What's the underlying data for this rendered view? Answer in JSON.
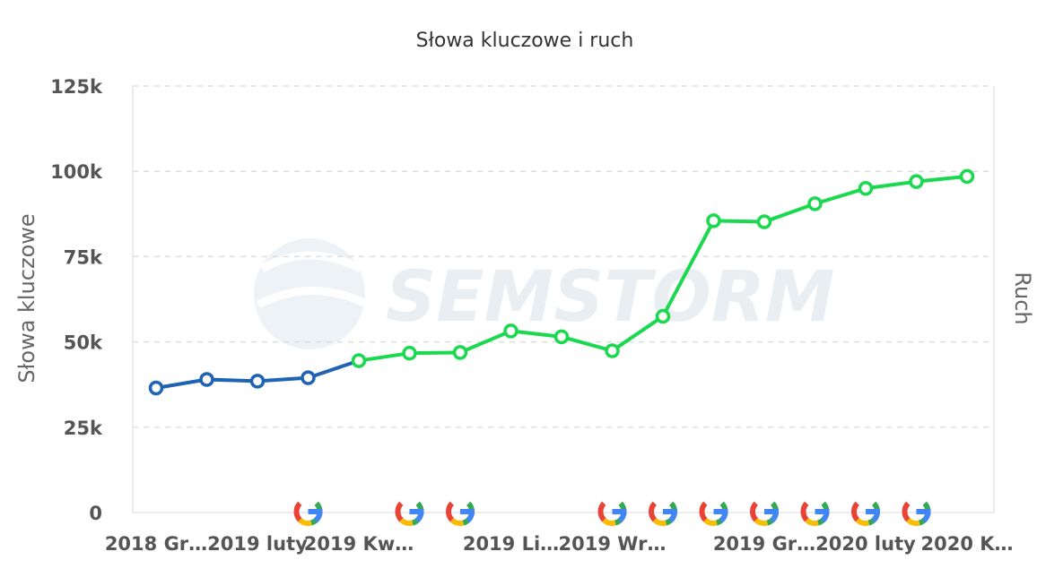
{
  "chart_data": {
    "type": "line",
    "title": "Słowa kluczowe i ruch",
    "ylabel": "Słowa kluczowe",
    "y2label": "Ruch",
    "watermark": "SEMSTORM",
    "ylim": [
      0,
      125000
    ],
    "yticks": [
      {
        "value": 0,
        "label": "0"
      },
      {
        "value": 25000,
        "label": "25k"
      },
      {
        "value": 50000,
        "label": "50k"
      },
      {
        "value": 75000,
        "label": "75k"
      },
      {
        "value": 100000,
        "label": "100k"
      },
      {
        "value": 125000,
        "label": "125k"
      }
    ],
    "xticklabels": [
      {
        "index": 0,
        "label": "2018 Gr…"
      },
      {
        "index": 2,
        "label": "2019 luty"
      },
      {
        "index": 4,
        "label": "2019 Kw…"
      },
      {
        "index": 7,
        "label": "2019 Li…"
      },
      {
        "index": 9,
        "label": "2019 Wr…"
      },
      {
        "index": 12,
        "label": "2019 Gr…"
      },
      {
        "index": 14,
        "label": "2020 luty"
      },
      {
        "index": 16,
        "label": "2020 K…"
      }
    ],
    "points": 17,
    "grid": true,
    "series": [
      {
        "color": "#1f63b4",
        "start": 0,
        "values": [
          36500,
          39000,
          38500,
          39500,
          44500
        ]
      },
      {
        "color": "#1ad94f",
        "start": 4,
        "values": [
          44500,
          46700,
          46900,
          53200,
          51500,
          47400,
          57500,
          85500,
          85200,
          90500,
          95000,
          97000,
          98500
        ]
      }
    ],
    "google_update_markers": [
      3,
      5,
      6,
      9,
      10,
      11,
      12,
      13,
      14,
      15
    ],
    "icon": "google-g-icon"
  }
}
